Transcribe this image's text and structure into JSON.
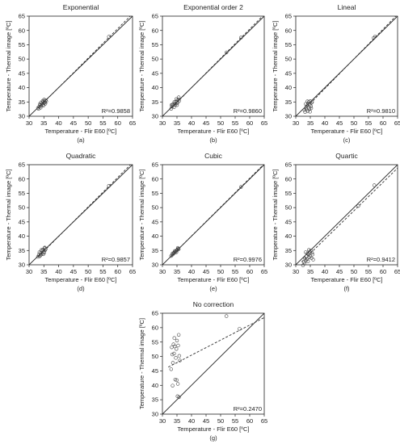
{
  "chart_data": [
    {
      "type": "scatter",
      "panel": "(a)",
      "title": "Exponential",
      "xlabel": "Temperature - Flir E60 [ºC]",
      "ylabel": "Temperature - Thermal image [ºC]",
      "xlim": [
        30,
        65
      ],
      "ylim": [
        30,
        65
      ],
      "xticks": [
        30,
        35,
        40,
        45,
        50,
        55,
        60,
        65
      ],
      "yticks": [
        30,
        35,
        40,
        45,
        50,
        55,
        60,
        65
      ],
      "r2": "R²=0.9858",
      "fit": [
        [
          33,
          32.8
        ],
        [
          65,
          65.8
        ]
      ],
      "points": [
        [
          33.0,
          32.9
        ],
        [
          33.4,
          33.3
        ],
        [
          33.8,
          33.9
        ],
        [
          34.1,
          33.6
        ],
        [
          34.3,
          34.4
        ],
        [
          34.5,
          34.0
        ],
        [
          34.7,
          35.0
        ],
        [
          35.0,
          34.6
        ],
        [
          35.2,
          35.3
        ],
        [
          35.4,
          34.9
        ],
        [
          35.6,
          35.6
        ],
        [
          35.8,
          35.2
        ],
        [
          33.6,
          34.2
        ],
        [
          34.0,
          34.8
        ],
        [
          34.9,
          33.8
        ],
        [
          35.1,
          35.8
        ],
        [
          33.2,
          32.6
        ],
        [
          35.5,
          34.4
        ],
        [
          34.6,
          35.4
        ],
        [
          33.9,
          33.0
        ],
        [
          57.0,
          57.8
        ]
      ]
    },
    {
      "type": "scatter",
      "panel": "(b)",
      "title": "Exponential order 2",
      "xlabel": "Temperature - Flir E60 [ºC]",
      "ylabel": "Temperature - Thermal image [ºC]",
      "xlim": [
        30,
        65
      ],
      "ylim": [
        30,
        65
      ],
      "xticks": [
        30,
        35,
        40,
        45,
        50,
        55,
        60,
        65
      ],
      "yticks": [
        30,
        35,
        40,
        45,
        50,
        55,
        60,
        65
      ],
      "r2": "R²=0.9860",
      "fit": [
        [
          33,
          32.8
        ],
        [
          65,
          65.6
        ]
      ],
      "points": [
        [
          33.0,
          32.6
        ],
        [
          33.3,
          33.4
        ],
        [
          33.7,
          33.8
        ],
        [
          34.0,
          33.2
        ],
        [
          34.2,
          34.5
        ],
        [
          34.4,
          34.0
        ],
        [
          34.6,
          35.1
        ],
        [
          34.9,
          34.5
        ],
        [
          35.1,
          35.5
        ],
        [
          35.3,
          34.8
        ],
        [
          35.5,
          35.9
        ],
        [
          35.8,
          35.4
        ],
        [
          33.5,
          34.1
        ],
        [
          34.1,
          35.0
        ],
        [
          35.0,
          33.9
        ],
        [
          35.6,
          36.6
        ],
        [
          33.1,
          33.9
        ],
        [
          34.8,
          36.0
        ],
        [
          52.0,
          52.3
        ],
        [
          57.0,
          57.5
        ]
      ]
    },
    {
      "type": "scatter",
      "panel": "(c)",
      "title": "Lineal",
      "xlabel": "Temperature - Flir E60 [ºC]",
      "ylabel": "Temperature - Thermal image [ºC]",
      "xlim": [
        30,
        65
      ],
      "ylim": [
        30,
        65
      ],
      "xticks": [
        30,
        35,
        40,
        45,
        50,
        55,
        60,
        65
      ],
      "yticks": [
        30,
        35,
        40,
        45,
        50,
        55,
        60,
        65
      ],
      "r2": "R²=0.9810",
      "fit": [
        [
          33,
          32.4
        ],
        [
          65,
          65.6
        ]
      ],
      "points": [
        [
          33.0,
          32.2
        ],
        [
          33.2,
          31.5
        ],
        [
          33.5,
          33.0
        ],
        [
          33.7,
          32.4
        ],
        [
          33.9,
          33.8
        ],
        [
          34.1,
          31.8
        ],
        [
          34.2,
          34.5
        ],
        [
          34.4,
          33.0
        ],
        [
          34.5,
          35.0
        ],
        [
          34.7,
          32.5
        ],
        [
          34.8,
          34.0
        ],
        [
          35.0,
          35.3
        ],
        [
          35.2,
          33.5
        ],
        [
          35.4,
          34.7
        ],
        [
          35.6,
          35.0
        ],
        [
          33.4,
          34.3
        ],
        [
          34.0,
          35.2
        ],
        [
          34.9,
          31.6
        ],
        [
          35.3,
          32.8
        ],
        [
          56.8,
          57.4
        ],
        [
          57.3,
          57.9
        ]
      ]
    },
    {
      "type": "scatter",
      "panel": "(d)",
      "title": "Quadratic",
      "xlabel": "Temperature - Flir E60 [ºC]",
      "ylabel": "Temperature - Thermal image [ºC]",
      "xlim": [
        30,
        65
      ],
      "ylim": [
        30,
        65
      ],
      "xticks": [
        30,
        35,
        40,
        45,
        50,
        55,
        60,
        65
      ],
      "yticks": [
        30,
        35,
        40,
        45,
        50,
        55,
        60,
        65
      ],
      "r2": "R²=0.9857",
      "fit": [
        [
          33,
          32.7
        ],
        [
          65,
          65.7
        ]
      ],
      "points": [
        [
          33.0,
          32.8
        ],
        [
          33.3,
          33.5
        ],
        [
          33.6,
          33.0
        ],
        [
          33.9,
          34.2
        ],
        [
          34.1,
          33.6
        ],
        [
          34.3,
          34.8
        ],
        [
          34.5,
          34.1
        ],
        [
          34.7,
          35.3
        ],
        [
          35.0,
          34.6
        ],
        [
          35.2,
          35.8
        ],
        [
          35.4,
          35.1
        ],
        [
          35.6,
          35.5
        ],
        [
          33.5,
          34.4
        ],
        [
          34.2,
          35.2
        ],
        [
          34.8,
          33.7
        ],
        [
          35.3,
          36.0
        ],
        [
          33.8,
          33.3
        ],
        [
          35.1,
          34.2
        ],
        [
          57.0,
          57.6
        ]
      ]
    },
    {
      "type": "scatter",
      "panel": "(e)",
      "title": "Cubic",
      "xlabel": "Temperature - Flir E60 [ºC]",
      "ylabel": "Temperature - Thermal image [ºC]",
      "xlim": [
        30,
        65
      ],
      "ylim": [
        30,
        65
      ],
      "xticks": [
        30,
        35,
        40,
        45,
        50,
        55,
        60,
        65
      ],
      "yticks": [
        30,
        35,
        40,
        45,
        50,
        55,
        60,
        65
      ],
      "r2": "R²=0.9976",
      "fit": [
        [
          33,
          33.0
        ],
        [
          65,
          65.3
        ]
      ],
      "points": [
        [
          33.0,
          33.1
        ],
        [
          33.3,
          33.4
        ],
        [
          33.6,
          33.7
        ],
        [
          33.9,
          34.0
        ],
        [
          34.1,
          34.2
        ],
        [
          34.3,
          34.5
        ],
        [
          34.5,
          34.6
        ],
        [
          34.7,
          34.9
        ],
        [
          35.0,
          35.1
        ],
        [
          35.2,
          35.3
        ],
        [
          35.4,
          35.6
        ],
        [
          35.6,
          35.5
        ],
        [
          33.5,
          34.0
        ],
        [
          34.2,
          34.8
        ],
        [
          34.8,
          34.4
        ],
        [
          35.3,
          35.9
        ],
        [
          57.0,
          57.2
        ]
      ]
    },
    {
      "type": "scatter",
      "panel": "(f)",
      "title": "Quartic",
      "xlabel": "Temperature - Flir E60 [ºC]",
      "ylabel": "Temperature - Thermal image [ºC]",
      "xlim": [
        30,
        65
      ],
      "ylim": [
        30,
        65
      ],
      "xticks": [
        30,
        35,
        40,
        45,
        50,
        55,
        60,
        65
      ],
      "yticks": [
        30,
        35,
        40,
        45,
        50,
        55,
        60,
        65
      ],
      "r2": "R²=0.9412",
      "fit": [
        [
          32,
          31.0
        ],
        [
          65,
          63.8
        ]
      ],
      "points": [
        [
          32.5,
          29.8
        ],
        [
          32.8,
          31.0
        ],
        [
          33.0,
          30.4
        ],
        [
          33.2,
          32.2
        ],
        [
          33.5,
          31.5
        ],
        [
          33.7,
          33.0
        ],
        [
          33.9,
          32.0
        ],
        [
          34.0,
          34.0
        ],
        [
          34.2,
          31.2
        ],
        [
          34.4,
          33.5
        ],
        [
          34.6,
          32.6
        ],
        [
          34.8,
          34.6
        ],
        [
          35.0,
          33.0
        ],
        [
          35.2,
          35.0
        ],
        [
          35.4,
          32.3
        ],
        [
          35.6,
          34.2
        ],
        [
          35.8,
          33.6
        ],
        [
          36.0,
          31.8
        ],
        [
          34.5,
          35.2
        ],
        [
          33.4,
          34.4
        ],
        [
          51.5,
          50.6
        ],
        [
          57.0,
          57.8
        ]
      ]
    },
    {
      "type": "scatter",
      "panel": "(g)",
      "title": "No correction",
      "xlabel": "Temperature - Flir E60 [ºC]",
      "ylabel": "Temperature - Thermal image [ºC]",
      "xlim": [
        30,
        65
      ],
      "ylim": [
        30,
        65
      ],
      "xticks": [
        30,
        35,
        40,
        45,
        50,
        55,
        60,
        65
      ],
      "yticks": [
        30,
        35,
        40,
        45,
        50,
        55,
        60,
        65
      ],
      "r2": "R²=0.2470",
      "fit": [
        [
          32,
          46.3
        ],
        [
          65,
          63.5
        ]
      ],
      "points": [
        [
          33.0,
          45.6
        ],
        [
          33.2,
          53.2
        ],
        [
          33.4,
          50.7
        ],
        [
          33.6,
          47.8
        ],
        [
          33.8,
          54.2
        ],
        [
          34.0,
          51.0
        ],
        [
          34.2,
          53.5
        ],
        [
          34.4,
          42.0
        ],
        [
          34.6,
          49.5
        ],
        [
          34.8,
          52.6
        ],
        [
          35.0,
          55.5
        ],
        [
          35.2,
          36.2
        ],
        [
          35.4,
          53.8
        ],
        [
          35.6,
          57.5
        ],
        [
          35.8,
          50.2
        ],
        [
          36.0,
          48.6
        ],
        [
          34.9,
          41.8
        ],
        [
          35.3,
          40.5
        ],
        [
          33.5,
          39.9
        ],
        [
          35.7,
          35.9
        ],
        [
          34.1,
          56.4
        ],
        [
          56.5,
          59.6
        ],
        [
          52.0,
          64.0
        ]
      ]
    }
  ]
}
